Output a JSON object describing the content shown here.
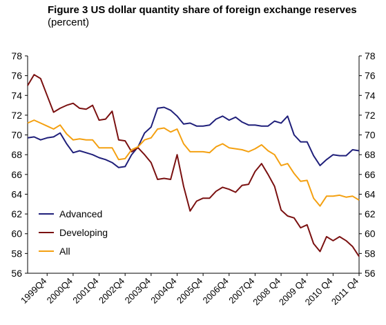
{
  "chart_data": {
    "type": "line",
    "title": "Figure 3 US dollar quantity share of foreign exchange reserves",
    "title_suffix": "(percent)",
    "xlabel": "",
    "ylabel": "",
    "ylim": [
      56,
      78
    ],
    "yticks": [
      56,
      58,
      60,
      62,
      64,
      66,
      68,
      70,
      72,
      74,
      76,
      78
    ],
    "xlim": [
      1999.0,
      2011.75
    ],
    "x_tick_labels": [
      {
        "label": "1999Q4",
        "x": 1999.75
      },
      {
        "label": "2000Q4",
        "x": 2000.75
      },
      {
        "label": "2001Q4",
        "x": 2001.75
      },
      {
        "label": "2002Q4",
        "x": 2002.75
      },
      {
        "label": "2003Q4",
        "x": 2003.75
      },
      {
        "label": "2004Q4",
        "x": 2004.75
      },
      {
        "label": "2005Q4",
        "x": 2005.75
      },
      {
        "label": "2006Q4",
        "x": 2006.75
      },
      {
        "label": "2007Q4",
        "x": 2007.75
      },
      {
        "label": "2008 Q4",
        "x": 2008.75
      },
      {
        "label": "2009 Q4",
        "x": 2009.75
      },
      {
        "label": "2010 Q4",
        "x": 2010.75
      },
      {
        "label": "2011 Q4",
        "x": 2011.75
      }
    ],
    "grid": false,
    "legend_position": "bottom-left",
    "series": [
      {
        "name": "Advanced",
        "color": "#1f1f7a",
        "x": [
          1999.0,
          1999.25,
          1999.5,
          1999.75,
          2000.0,
          2000.25,
          2000.5,
          2000.75,
          2001.0,
          2001.25,
          2001.5,
          2001.75,
          2002.0,
          2002.25,
          2002.5,
          2002.75,
          2003.0,
          2003.25,
          2003.5,
          2003.75,
          2004.0,
          2004.25,
          2004.5,
          2004.75,
          2005.0,
          2005.25,
          2005.5,
          2005.75,
          2006.0,
          2006.25,
          2006.5,
          2006.75,
          2007.0,
          2007.25,
          2007.5,
          2007.75,
          2008.0,
          2008.25,
          2008.5,
          2008.75,
          2009.0,
          2009.25,
          2009.5,
          2009.75,
          2010.0,
          2010.25,
          2010.5,
          2010.75,
          2011.0,
          2011.25,
          2011.5,
          2011.75
        ],
        "values": [
          69.7,
          69.8,
          69.5,
          69.7,
          69.8,
          70.2,
          69.1,
          68.2,
          68.4,
          68.2,
          68.0,
          67.7,
          67.5,
          67.2,
          66.7,
          66.8,
          68.0,
          68.8,
          70.2,
          70.8,
          72.7,
          72.8,
          72.5,
          71.9,
          71.1,
          71.2,
          70.9,
          70.9,
          71.0,
          71.6,
          71.9,
          71.5,
          71.8,
          71.3,
          71.0,
          71.0,
          70.9,
          70.9,
          71.4,
          71.2,
          71.9,
          70.0,
          69.3,
          69.3,
          67.9,
          66.9,
          67.5,
          68.0,
          67.9,
          67.9,
          68.5,
          68.4
        ]
      },
      {
        "name": "Developing",
        "color": "#7a1010",
        "x": [
          1999.0,
          1999.25,
          1999.5,
          1999.75,
          2000.0,
          2000.25,
          2000.5,
          2000.75,
          2001.0,
          2001.25,
          2001.5,
          2001.75,
          2002.0,
          2002.25,
          2002.5,
          2002.75,
          2003.0,
          2003.25,
          2003.5,
          2003.75,
          2004.0,
          2004.25,
          2004.5,
          2004.75,
          2005.0,
          2005.25,
          2005.5,
          2005.75,
          2006.0,
          2006.25,
          2006.5,
          2006.75,
          2007.0,
          2007.25,
          2007.5,
          2007.75,
          2008.0,
          2008.25,
          2008.5,
          2008.75,
          2009.0,
          2009.25,
          2009.5,
          2009.75,
          2010.0,
          2010.25,
          2010.5,
          2010.75,
          2011.0,
          2011.25,
          2011.5,
          2011.75
        ],
        "values": [
          75.0,
          76.1,
          75.7,
          74.0,
          72.3,
          72.7,
          73.0,
          73.2,
          72.7,
          72.6,
          73.0,
          71.5,
          71.6,
          72.4,
          69.5,
          69.4,
          68.3,
          68.7,
          68.0,
          67.2,
          65.5,
          65.6,
          65.5,
          68.0,
          64.8,
          62.3,
          63.3,
          63.6,
          63.6,
          64.3,
          64.7,
          64.5,
          64.2,
          64.9,
          65.0,
          66.3,
          67.1,
          66.0,
          64.8,
          62.4,
          61.8,
          61.6,
          60.6,
          60.9,
          59.0,
          58.2,
          59.7,
          59.3,
          59.7,
          59.3,
          58.7,
          57.7
        ]
      },
      {
        "name": "All",
        "color": "#f4a010",
        "x": [
          1999.0,
          1999.25,
          1999.5,
          1999.75,
          2000.0,
          2000.25,
          2000.5,
          2000.75,
          2001.0,
          2001.25,
          2001.5,
          2001.75,
          2002.0,
          2002.25,
          2002.5,
          2002.75,
          2003.0,
          2003.25,
          2003.5,
          2003.75,
          2004.0,
          2004.25,
          2004.5,
          2004.75,
          2005.0,
          2005.25,
          2005.5,
          2005.75,
          2006.0,
          2006.25,
          2006.5,
          2006.75,
          2007.0,
          2007.25,
          2007.5,
          2007.75,
          2008.0,
          2008.25,
          2008.5,
          2008.75,
          2009.0,
          2009.25,
          2009.5,
          2009.75,
          2010.0,
          2010.25,
          2010.5,
          2010.75,
          2011.0,
          2011.25,
          2011.5,
          2011.75
        ],
        "values": [
          71.2,
          71.5,
          71.2,
          70.9,
          70.6,
          71.0,
          70.1,
          69.5,
          69.6,
          69.5,
          69.5,
          68.7,
          68.7,
          68.7,
          67.5,
          67.6,
          68.5,
          68.8,
          69.5,
          69.7,
          70.6,
          70.7,
          70.3,
          70.6,
          69.1,
          68.3,
          68.3,
          68.3,
          68.2,
          68.8,
          69.1,
          68.7,
          68.6,
          68.5,
          68.3,
          68.6,
          69.0,
          68.4,
          68.0,
          66.9,
          67.1,
          66.1,
          65.3,
          65.4,
          63.6,
          62.8,
          63.8,
          63.8,
          63.9,
          63.7,
          63.8,
          63.4
        ]
      }
    ]
  }
}
